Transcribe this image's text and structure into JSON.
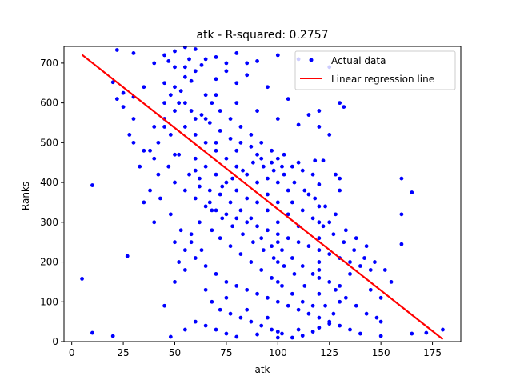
{
  "chart_data": {
    "type": "scatter",
    "title": "atk - R-squared: 0.2757",
    "xlabel": "atk",
    "ylabel": "Ranks",
    "xlim": [
      -3.75,
      188.75
    ],
    "ylim": [
      0,
      742
    ],
    "xticks": [
      0,
      25,
      50,
      75,
      100,
      125,
      150,
      175
    ],
    "yticks": [
      0,
      100,
      200,
      300,
      400,
      500,
      600,
      700
    ],
    "grid": false,
    "legend_position": "upper right",
    "series": [
      {
        "name": "Actual data",
        "kind": "scatter",
        "color": "#0000ff",
        "points": [
          [
            5,
            158
          ],
          [
            10,
            22
          ],
          [
            10,
            393
          ],
          [
            20,
            14
          ],
          [
            27,
            215
          ],
          [
            22,
            733
          ],
          [
            30,
            725
          ],
          [
            20,
            652
          ],
          [
            25,
            625
          ],
          [
            30,
            615
          ],
          [
            30,
            560
          ],
          [
            35,
            640
          ],
          [
            45,
            650
          ],
          [
            48,
            520
          ],
          [
            50,
            470
          ],
          [
            52,
            600
          ],
          [
            55,
            690
          ],
          [
            58,
            655
          ],
          [
            60,
            430
          ],
          [
            62,
            390
          ],
          [
            65,
            560
          ],
          [
            40,
            700
          ],
          [
            45,
            720
          ],
          [
            50,
            730
          ],
          [
            55,
            740
          ],
          [
            60,
            735
          ],
          [
            65,
            710
          ],
          [
            70,
            715
          ],
          [
            80,
            725
          ],
          [
            90,
            705
          ],
          [
            100,
            720
          ],
          [
            110,
            710
          ],
          [
            125,
            690
          ],
          [
            130,
            600
          ],
          [
            132,
            590
          ],
          [
            75,
            680
          ],
          [
            85,
            670
          ],
          [
            95,
            640
          ],
          [
            105,
            610
          ],
          [
            115,
            570
          ],
          [
            120,
            580
          ],
          [
            125,
            520
          ],
          [
            70,
            620
          ],
          [
            80,
            600
          ],
          [
            90,
            580
          ],
          [
            100,
            560
          ],
          [
            110,
            545
          ],
          [
            120,
            540
          ],
          [
            60,
            520
          ],
          [
            70,
            500
          ],
          [
            80,
            480
          ],
          [
            90,
            470
          ],
          [
            100,
            460
          ],
          [
            110,
            450
          ],
          [
            118,
            455
          ],
          [
            122,
            455
          ],
          [
            128,
            420
          ],
          [
            130,
            410
          ],
          [
            130,
            380
          ],
          [
            120,
            395
          ],
          [
            115,
            370
          ],
          [
            50,
            400
          ],
          [
            55,
            380
          ],
          [
            60,
            360
          ],
          [
            65,
            340
          ],
          [
            70,
            330
          ],
          [
            75,
            320
          ],
          [
            80,
            310
          ],
          [
            85,
            300
          ],
          [
            90,
            290
          ],
          [
            95,
            280
          ],
          [
            100,
            270
          ],
          [
            105,
            260
          ],
          [
            110,
            250
          ],
          [
            115,
            240
          ],
          [
            120,
            230
          ],
          [
            125,
            220
          ],
          [
            130,
            210
          ],
          [
            135,
            200
          ],
          [
            140,
            190
          ],
          [
            145,
            180
          ],
          [
            50,
            250
          ],
          [
            55,
            230
          ],
          [
            60,
            210
          ],
          [
            65,
            190
          ],
          [
            70,
            170
          ],
          [
            75,
            150
          ],
          [
            80,
            140
          ],
          [
            85,
            130
          ],
          [
            90,
            120
          ],
          [
            95,
            110
          ],
          [
            100,
            100
          ],
          [
            105,
            90
          ],
          [
            110,
            80
          ],
          [
            115,
            70
          ],
          [
            120,
            60
          ],
          [
            125,
            50
          ],
          [
            130,
            40
          ],
          [
            135,
            30
          ],
          [
            140,
            20
          ],
          [
            150,
            14
          ],
          [
            60,
            50
          ],
          [
            65,
            40
          ],
          [
            70,
            30
          ],
          [
            75,
            20
          ],
          [
            80,
            12
          ],
          [
            90,
            18
          ],
          [
            100,
            25
          ],
          [
            110,
            30
          ],
          [
            120,
            35
          ],
          [
            125,
            45
          ],
          [
            48,
            12
          ],
          [
            55,
            30
          ],
          [
            45,
            90
          ],
          [
            50,
            150
          ],
          [
            40,
            300
          ],
          [
            35,
            350
          ],
          [
            42,
            420
          ],
          [
            38,
            480
          ],
          [
            45,
            540
          ],
          [
            150,
            110
          ],
          [
            150,
            50
          ],
          [
            155,
            150
          ],
          [
            160,
            245
          ],
          [
            160,
            320
          ],
          [
            160,
            410
          ],
          [
            165,
            375
          ],
          [
            165,
            20
          ],
          [
            172,
            22
          ],
          [
            180,
            30
          ],
          [
            130,
            100
          ],
          [
            130,
            140
          ],
          [
            135,
            170
          ],
          [
            145,
            130
          ],
          [
            120,
            120
          ],
          [
            120,
            160
          ],
          [
            120,
            180
          ],
          [
            120,
            200
          ],
          [
            120,
            260
          ],
          [
            120,
            300
          ],
          [
            120,
            340
          ],
          [
            125,
            300
          ],
          [
            100,
            150
          ],
          [
            100,
            200
          ],
          [
            100,
            250
          ],
          [
            100,
            300
          ],
          [
            100,
            350
          ],
          [
            100,
            400
          ],
          [
            105,
            320
          ],
          [
            105,
            380
          ],
          [
            110,
            290
          ],
          [
            95,
            330
          ],
          [
            95,
            370
          ],
          [
            95,
            410
          ],
          [
            90,
            350
          ],
          [
            90,
            400
          ],
          [
            85,
            360
          ],
          [
            85,
            420
          ],
          [
            80,
            380
          ],
          [
            80,
            440
          ],
          [
            75,
            400
          ],
          [
            75,
            460
          ],
          [
            70,
            420
          ],
          [
            70,
            480
          ],
          [
            65,
            440
          ],
          [
            65,
            500
          ],
          [
            60,
            460
          ],
          [
            60,
            560
          ],
          [
            55,
            540
          ],
          [
            55,
            600
          ],
          [
            50,
            580
          ],
          [
            50,
            640
          ],
          [
            45,
            600
          ],
          [
            65,
            620
          ],
          [
            70,
            660
          ],
          [
            75,
            700
          ],
          [
            80,
            650
          ],
          [
            85,
            700
          ],
          [
            60,
            680
          ],
          [
            55,
            665
          ],
          [
            50,
            690
          ],
          [
            47,
            705
          ],
          [
            57,
            710
          ],
          [
            63,
            695
          ],
          [
            68,
            600
          ],
          [
            72,
            580
          ],
          [
            77,
            560
          ],
          [
            82,
            540
          ],
          [
            87,
            520
          ],
          [
            92,
            500
          ],
          [
            97,
            480
          ],
          [
            103,
            470
          ],
          [
            107,
            440
          ],
          [
            112,
            430
          ],
          [
            117,
            420
          ],
          [
            68,
            280
          ],
          [
            72,
            260
          ],
          [
            77,
            240
          ],
          [
            82,
            220
          ],
          [
            87,
            200
          ],
          [
            92,
            180
          ],
          [
            97,
            160
          ],
          [
            102,
            140
          ],
          [
            107,
            120
          ],
          [
            112,
            100
          ],
          [
            117,
            90
          ],
          [
            68,
            100
          ],
          [
            72,
            80
          ],
          [
            77,
            70
          ],
          [
            82,
            60
          ],
          [
            87,
            50
          ],
          [
            92,
            40
          ],
          [
            97,
            30
          ],
          [
            102,
            20
          ],
          [
            107,
            10
          ],
          [
            112,
            15
          ],
          [
            117,
            25
          ],
          [
            100,
            10
          ],
          [
            95,
            60
          ],
          [
            85,
            80
          ],
          [
            75,
            110
          ],
          [
            65,
            130
          ],
          [
            55,
            180
          ],
          [
            52,
            200
          ],
          [
            58,
            270
          ],
          [
            62,
            300
          ],
          [
            67,
            350
          ],
          [
            73,
            390
          ],
          [
            78,
            410
          ],
          [
            83,
            430
          ],
          [
            88,
            450
          ],
          [
            93,
            440
          ],
          [
            98,
            430
          ],
          [
            103,
            420
          ],
          [
            108,
            400
          ],
          [
            113,
            380
          ],
          [
            118,
            360
          ],
          [
            123,
            340
          ],
          [
            128,
            320
          ],
          [
            133,
            280
          ],
          [
            138,
            260
          ],
          [
            143,
            240
          ],
          [
            125,
            150
          ],
          [
            128,
            130
          ],
          [
            133,
            110
          ],
          [
            138,
            90
          ],
          [
            143,
            70
          ],
          [
            148,
            60
          ],
          [
            123,
            90
          ],
          [
            127,
            70
          ],
          [
            113,
            140
          ],
          [
            108,
            170
          ],
          [
            103,
            190
          ],
          [
            98,
            210
          ],
          [
            93,
            230
          ],
          [
            88,
            250
          ],
          [
            83,
            270
          ],
          [
            78,
            290
          ],
          [
            73,
            310
          ],
          [
            68,
            330
          ],
          [
            63,
            230
          ],
          [
            58,
            250
          ],
          [
            53,
            280
          ],
          [
            48,
            320
          ],
          [
            43,
            360
          ],
          [
            38,
            380
          ],
          [
            33,
            440
          ],
          [
            28,
            520
          ],
          [
            25,
            590
          ],
          [
            22,
            610
          ],
          [
            30,
            500
          ],
          [
            35,
            480
          ],
          [
            40,
            460
          ],
          [
            42,
            500
          ],
          [
            47,
            440
          ],
          [
            52,
            470
          ],
          [
            57,
            420
          ],
          [
            62,
            410
          ],
          [
            67,
            380
          ],
          [
            72,
            370
          ],
          [
            77,
            350
          ],
          [
            82,
            330
          ],
          [
            87,
            310
          ],
          [
            92,
            260
          ],
          [
            97,
            240
          ],
          [
            102,
            230
          ],
          [
            107,
            210
          ],
          [
            112,
            190
          ],
          [
            117,
            170
          ],
          [
            40,
            540
          ],
          [
            45,
            560
          ],
          [
            48,
            620
          ],
          [
            53,
            630
          ],
          [
            58,
            580
          ],
          [
            63,
            570
          ],
          [
            67,
            550
          ],
          [
            72,
            530
          ],
          [
            77,
            510
          ],
          [
            82,
            500
          ],
          [
            87,
            490
          ],
          [
            92,
            460
          ],
          [
            97,
            450
          ],
          [
            102,
            440
          ],
          [
            107,
            350
          ],
          [
            112,
            330
          ],
          [
            117,
            310
          ],
          [
            122,
            290
          ],
          [
            127,
            270
          ],
          [
            132,
            250
          ],
          [
            137,
            230
          ],
          [
            142,
            210
          ],
          [
            147,
            200
          ],
          [
            152,
            180
          ]
        ]
      },
      {
        "name": "Linear regression line",
        "kind": "line",
        "color": "#ff0000",
        "x": [
          5,
          180
        ],
        "y": [
          721,
          6
        ]
      }
    ]
  }
}
